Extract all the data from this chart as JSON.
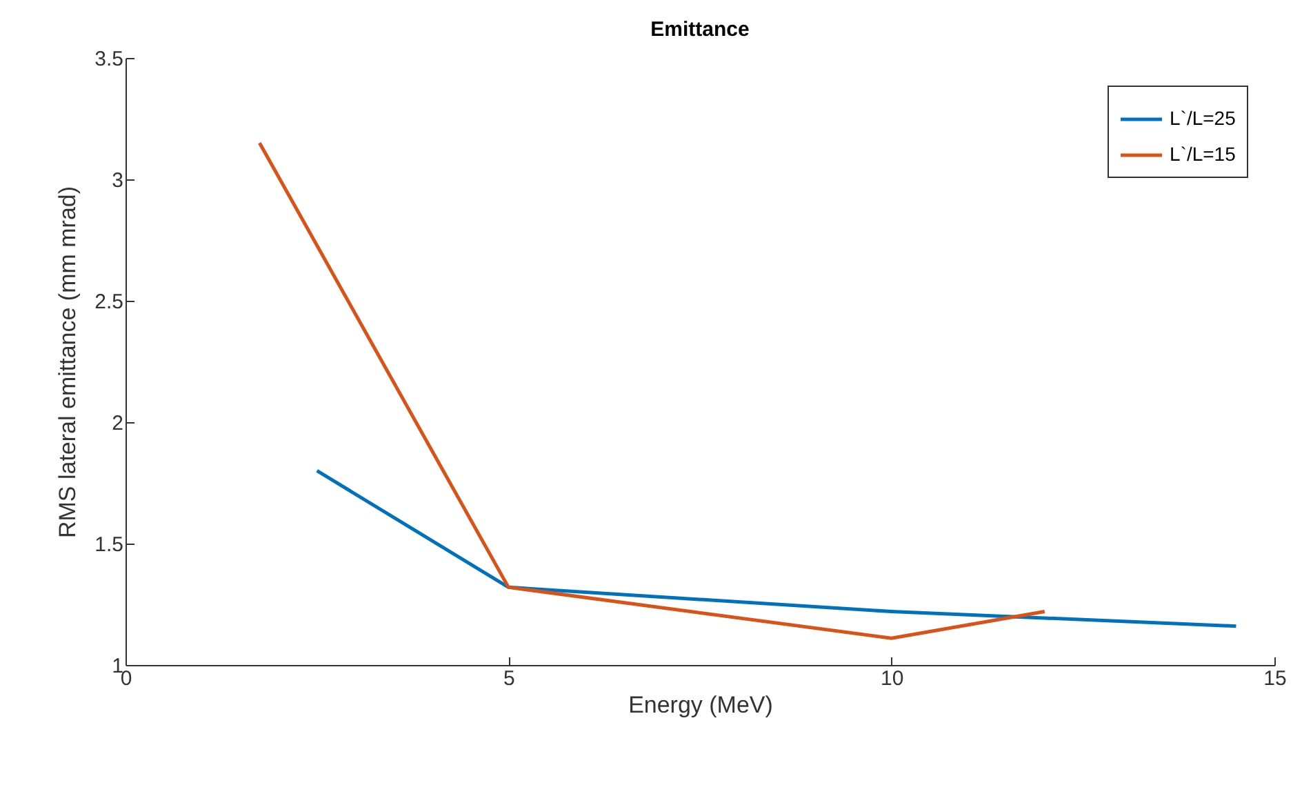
{
  "chart_data": {
    "type": "line",
    "title": "Emittance",
    "xlabel": "Energy (MeV)",
    "ylabel": "RMS lateral emittance (mm mrad)",
    "series": [
      {
        "name": "L`/L=25",
        "color": "#0072bd",
        "x": [
          2.5,
          5,
          10,
          14.5
        ],
        "values": [
          1.8,
          1.32,
          1.22,
          1.16
        ]
      },
      {
        "name": "L`/L=15",
        "color": "#d95319",
        "x": [
          1.75,
          5,
          10,
          12
        ],
        "values": [
          3.15,
          1.32,
          1.11,
          1.22
        ]
      }
    ],
    "xlim": [
      0,
      15
    ],
    "xticks": [
      0,
      5,
      10,
      15
    ],
    "ylim": [
      1,
      3.5
    ],
    "yticks": [
      1,
      1.5,
      2,
      2.5,
      3,
      3.5
    ],
    "grid": false,
    "legend": "top right",
    "marker": "none",
    "line_style": "solid"
  }
}
